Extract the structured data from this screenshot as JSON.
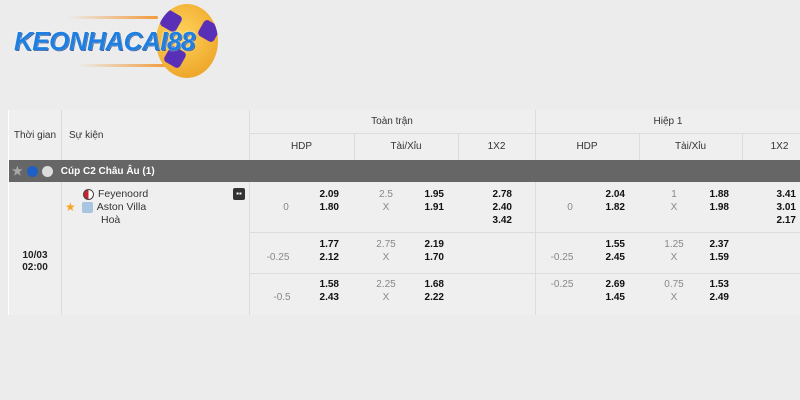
{
  "logo": {
    "text": "KEONHACAI88"
  },
  "header": {
    "time": "Thời gian",
    "event": "Sự kiện",
    "full_match": "Toàn trận",
    "first_half": "Hiệp 1",
    "cols": [
      "HDP",
      "Tài/Xỉu",
      "1X2",
      "HDP",
      "Tài/Xỉu",
      "1X2"
    ]
  },
  "league": {
    "name": "Cúp C2 Châu Âu (1)",
    "colors": {
      "bar": "#666666",
      "star": "#f5a623"
    }
  },
  "match": {
    "date": "10/03",
    "time": "02:00",
    "home": "Feyenoord",
    "away": "Aston Villa",
    "draw": "Hoà",
    "rows": [
      {
        "ft_hdp": "0",
        "ft_hdp_odds": [
          "2.09",
          "1.80"
        ],
        "ft_ou": [
          "2.5",
          "X"
        ],
        "ft_ou_odds": [
          "1.95",
          "1.91"
        ],
        "ft_1x2": [
          "2.78",
          "2.40",
          "3.42"
        ],
        "h1_hdp": "0",
        "h1_hdp_odds": [
          "2.04",
          "1.82"
        ],
        "h1_ou": [
          "1",
          "X"
        ],
        "h1_ou_odds": [
          "1.88",
          "1.98"
        ],
        "h1_1x2": [
          "3.41",
          "3.01",
          "2.17"
        ]
      },
      {
        "ft_hdp": "-0.25",
        "ft_hdp_odds": [
          "1.77",
          "2.12"
        ],
        "ft_ou": [
          "2.75",
          "X"
        ],
        "ft_ou_odds": [
          "2.19",
          "1.70"
        ],
        "h1_hdp": "-0.25",
        "h1_hdp_odds": [
          "1.55",
          "2.45"
        ],
        "h1_ou": [
          "1.25",
          "X"
        ],
        "h1_ou_odds": [
          "2.37",
          "1.59"
        ]
      },
      {
        "ft_hdp": "-0.5",
        "ft_hdp_odds": [
          "1.58",
          "2.43"
        ],
        "ft_ou": [
          "2.25",
          "X"
        ],
        "ft_ou_odds": [
          "1.68",
          "2.22"
        ],
        "h1_hdp": "-0.25",
        "h1_hdp_odds": [
          "2.69",
          "1.45"
        ],
        "h1_ou": [
          "0.75",
          "X"
        ],
        "h1_ou_odds": [
          "1.53",
          "2.49"
        ]
      }
    ]
  }
}
